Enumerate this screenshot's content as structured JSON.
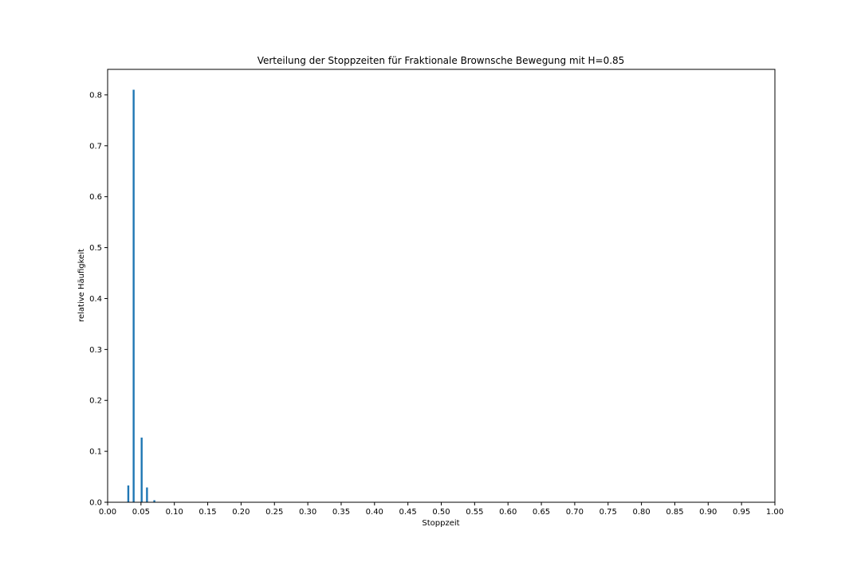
{
  "chart_data": {
    "type": "bar",
    "title": "Verteilung der Stoppzeiten für Fraktionale Brownsche Bewegung mit H=0.85",
    "xlabel": "Stoppzeit",
    "ylabel": "relative Häufigkeit",
    "xlim": [
      0.0,
      1.0
    ],
    "ylim": [
      0.0,
      0.85
    ],
    "grid": false,
    "bar_color": "#1f77b4",
    "x_ticks": [
      "0.00",
      "0.05",
      "0.10",
      "0.15",
      "0.20",
      "0.25",
      "0.30",
      "0.35",
      "0.40",
      "0.45",
      "0.50",
      "0.55",
      "0.60",
      "0.65",
      "0.70",
      "0.75",
      "0.80",
      "0.85",
      "0.90",
      "0.95",
      "1.00"
    ],
    "y_ticks": [
      "0.0",
      "0.1",
      "0.2",
      "0.3",
      "0.4",
      "0.5",
      "0.6",
      "0.7",
      "0.8"
    ],
    "bins": [
      {
        "x": 0.031,
        "value": 0.033
      },
      {
        "x": 0.039,
        "value": 0.81
      },
      {
        "x": 0.051,
        "value": 0.127
      },
      {
        "x": 0.059,
        "value": 0.029
      },
      {
        "x": 0.07,
        "value": 0.004
      }
    ]
  }
}
